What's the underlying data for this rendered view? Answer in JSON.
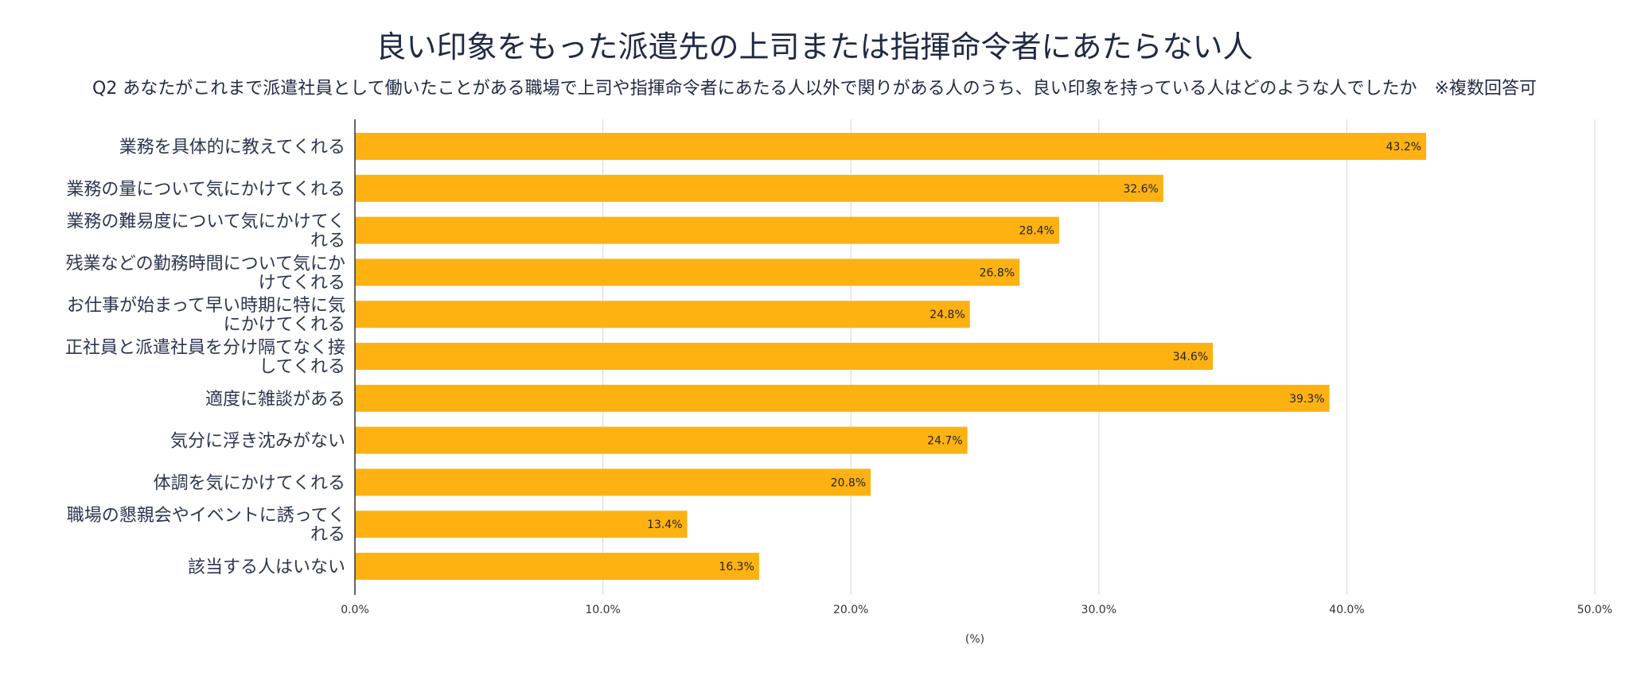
{
  "chart_data": {
    "type": "bar",
    "orientation": "horizontal",
    "title": "良い印象をもった派遣先の上司または指揮命令者にあたらない人",
    "subtitle": "Q2 あなたがこれまで派遣社員として働いたことがある職場で上司や指揮命令者にあたる人以外で関りがある人のうち、良い印象を持っている人はどのような人でしたか　※複数回答可",
    "xlabel": "(%)",
    "ylabel": "",
    "xlim": [
      0,
      50
    ],
    "grid": true,
    "legend": "none",
    "color": "#FDB212",
    "categories": [
      [
        "業務を具体的に教えてくれる"
      ],
      [
        "業務の量について気にかけてくれる"
      ],
      [
        "業務の難易度について気にかけてく",
        "れる"
      ],
      [
        "残業などの勤務時間について気にか",
        "けてくれる"
      ],
      [
        "お仕事が始まって早い時期に特に気",
        "にかけてくれる"
      ],
      [
        "正社員と派遣社員を分け隔てなく接",
        "してくれる"
      ],
      [
        "適度に雑談がある"
      ],
      [
        "気分に浮き沈みがない"
      ],
      [
        "体調を気にかけてくれる"
      ],
      [
        "職場の懇親会やイベントに誘ってく",
        "れる"
      ],
      [
        "該当する人はいない"
      ]
    ],
    "values": [
      43.2,
      32.6,
      28.4,
      26.8,
      24.8,
      34.6,
      39.3,
      24.7,
      20.8,
      13.4,
      16.3
    ],
    "value_labels": [
      "43.2%",
      "32.6%",
      "28.4%",
      "26.8%",
      "24.8%",
      "34.6%",
      "39.3%",
      "24.7%",
      "20.8%",
      "13.4%",
      "16.3%"
    ],
    "x_ticks": [
      0,
      10,
      20,
      30,
      40,
      50
    ],
    "x_tick_labels": [
      "0.0%",
      "10.0%",
      "20.0%",
      "30.0%",
      "40.0%",
      "50.0%"
    ]
  }
}
